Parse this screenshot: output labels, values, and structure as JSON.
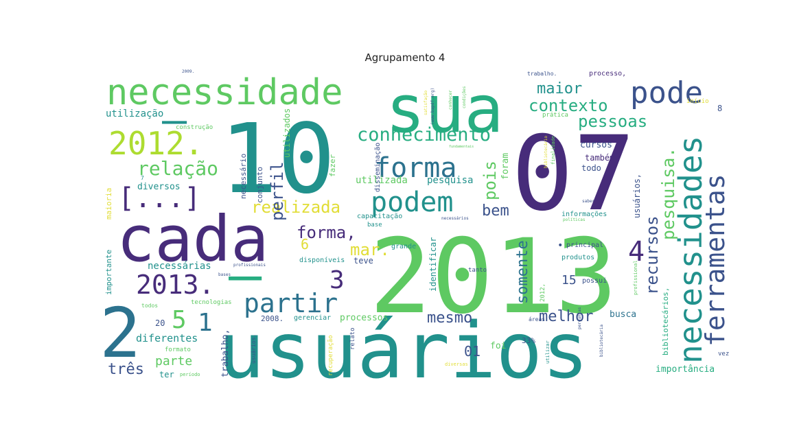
{
  "title": "Agrupamento 4",
  "palette": {
    "dark_purple": "#472c7a",
    "indigo": "#3b528b",
    "blue": "#2c728e",
    "teal": "#21918c",
    "green_teal": "#27ad81",
    "green": "#5ec962",
    "yellow_green": "#addc30",
    "yellow": "#e1dd37"
  },
  "words": [
    {
      "text": "2013",
      "color": "#5ec962"
    },
    {
      "text": "usuários",
      "color": "#21918c"
    },
    {
      "text": "10",
      "color": "#21918c"
    },
    {
      "text": "07",
      "color": "#472c7a"
    },
    {
      "text": "sua",
      "color": "#27ad81"
    },
    {
      "text": "cada",
      "color": "#472c7a"
    },
    {
      "text": "2",
      "color": "#2c728e"
    },
    {
      "text": "–",
      "color": "#21918c"
    },
    {
      "text": "–",
      "color": "#27ad81"
    },
    {
      "text": "necessidade",
      "color": "#5ec962"
    },
    {
      "text": "necessidades",
      "color": "#21918c"
    },
    {
      "text": "ferramentas",
      "color": "#3b528b"
    },
    {
      "text": "pode",
      "color": "#3b528b"
    },
    {
      "text": "2012.",
      "color": "#addc30"
    },
    {
      "text": "forma",
      "color": "#2c728e"
    },
    {
      "text": "podem",
      "color": "#21918c"
    },
    {
      "text": "partir",
      "color": "#2c728e"
    },
    {
      "text": "2013.",
      "color": "#472c7a"
    },
    {
      "text": "[...]",
      "color": "#472c7a"
    },
    {
      "text": "conhecimento",
      "color": "#27ad81"
    },
    {
      "text": "relação",
      "color": "#5ec962"
    },
    {
      "text": "realizada",
      "color": "#e1dd37"
    },
    {
      "text": "pesquisa.",
      "color": "#5ec962"
    },
    {
      "text": "recursos",
      "color": "#3b528b"
    },
    {
      "text": "contexto",
      "color": "#27ad81"
    },
    {
      "text": "pessoas",
      "color": "#27ad81"
    },
    {
      "text": "maior",
      "color": "#21918c"
    },
    {
      "text": "perfil",
      "color": "#3b528b"
    },
    {
      "text": "pois",
      "color": "#5ec962"
    },
    {
      "text": "bem",
      "color": "#3b528b"
    },
    {
      "text": "forma,",
      "color": "#472c7a"
    },
    {
      "text": "mar.",
      "color": "#e1dd37"
    },
    {
      "text": "6",
      "color": "#e1dd37"
    },
    {
      "text": "3",
      "color": "#472c7a"
    },
    {
      "text": "4",
      "color": "#472c7a"
    },
    {
      "text": "5",
      "color": "#5ec962"
    },
    {
      "text": "1",
      "color": "#2c728e"
    },
    {
      "text": "somente",
      "color": "#2c728e"
    },
    {
      "text": "mesmo",
      "color": "#3b528b"
    },
    {
      "text": "melhor",
      "color": "#3b528b"
    },
    {
      "text": "15",
      "color": "#3b528b"
    },
    {
      "text": "01",
      "color": "#3b528b"
    },
    {
      "text": "três",
      "color": "#3b528b"
    },
    {
      "text": "parte",
      "color": "#5ec962"
    },
    {
      "text": "diferentes",
      "color": "#21918c"
    },
    {
      "text": "necessárias",
      "color": "#21918c"
    },
    {
      "text": "diversos",
      "color": "#21918c"
    },
    {
      "text": "utilização",
      "color": "#21918c"
    },
    {
      "text": "cursos",
      "color": "#3b528b"
    },
    {
      "text": "também",
      "color": "#472c7a"
    },
    {
      "text": "todo",
      "color": "#3b528b"
    },
    {
      "text": "foram",
      "color": "#5ec962"
    },
    {
      "text": "processos",
      "color": "#5ec962"
    },
    {
      "text": "utilizada",
      "color": "#5ec962"
    },
    {
      "text": "pesquisa",
      "color": "#21918c"
    },
    {
      "text": "busca",
      "color": "#2c728e"
    },
    {
      "text": "importância",
      "color": "#27ad81"
    },
    {
      "text": "usuários,",
      "color": "#3b528b"
    },
    {
      "text": "bibliotecários,",
      "color": "#27ad81"
    },
    {
      "text": "necessário",
      "color": "#3b528b"
    },
    {
      "text": "conjunto",
      "color": "#3b528b"
    },
    {
      "text": "utilizados",
      "color": "#5ec962"
    },
    {
      "text": "trabalho,",
      "color": "#3b528b"
    },
    {
      "text": "fazer",
      "color": "#5ec962"
    },
    {
      "text": "teve",
      "color": "#3b528b"
    },
    {
      "text": "foi",
      "color": "#5ec962"
    },
    {
      "text": "ter",
      "color": "#21918c"
    },
    {
      "text": "2008.",
      "color": "#3b528b"
    },
    {
      "text": "gerenciar",
      "color": "#21918c"
    },
    {
      "text": "20",
      "color": "#3b528b"
    },
    {
      "text": "33%",
      "color": "#3b528b"
    },
    {
      "text": "possui",
      "color": "#3b528b"
    },
    {
      "text": "principal",
      "color": "#3b528b"
    },
    {
      "text": "produtos",
      "color": "#21918c"
    },
    {
      "text": "tanto",
      "color": "#3b528b"
    },
    {
      "text": "identificar",
      "color": "#21918c"
    },
    {
      "text": "grande",
      "color": "#21918c"
    },
    {
      "text": "disponíveis",
      "color": "#21918c"
    },
    {
      "text": "capacitação",
      "color": "#21918c"
    },
    {
      "text": "base",
      "color": "#21918c"
    },
    {
      "text": "informações",
      "color": "#21918c"
    },
    {
      "text": "maioria",
      "color": "#e1dd37"
    },
    {
      "text": "importante",
      "color": "#21918c"
    },
    {
      "text": "construção",
      "color": "#5ec962"
    },
    {
      "text": "disseminação",
      "color": "#3b528b"
    },
    {
      "text": "prática",
      "color": "#5ec962"
    },
    {
      "text": "início",
      "color": "#e1dd37"
    },
    {
      "text": "processo,",
      "color": "#472c7a"
    },
    {
      "text": "trabalho.",
      "color": "#3b528b"
    },
    {
      "text": "tecnologias",
      "color": "#5ec962"
    },
    {
      "text": "formato",
      "color": "#5ec962"
    },
    {
      "text": "relato",
      "color": "#3b528b"
    },
    {
      "text": "vez",
      "color": "#3b528b"
    },
    {
      "text": "áreas",
      "color": "#3b528b"
    },
    {
      "text": "todos",
      "color": "#5ec962"
    },
    {
      "text": "2009.",
      "color": "#3b528b"
    },
    {
      "text": "2012,",
      "color": "#5ec962"
    },
    {
      "text": "recuperação",
      "color": "#e1dd37"
    },
    {
      "text": "bases",
      "color": "#3b528b"
    },
    {
      "text": "profissionais",
      "color": "#3b528b"
    },
    {
      "text": "necessários",
      "color": "#3b528b"
    },
    {
      "text": "saber",
      "color": "#3b528b"
    },
    {
      "text": "período",
      "color": "#5ec962"
    },
    {
      "text": "utilizar",
      "color": "#21918c"
    },
    {
      "text": "finalidade",
      "color": "#5ec962"
    },
    {
      "text": "políticas",
      "color": "#5ec962"
    },
    {
      "text": "diversas",
      "color": "#e1dd37"
    },
    {
      "text": "usuários.",
      "color": "#3b528b"
    },
    {
      "text": "conhecer",
      "color": "#5ec962"
    },
    {
      "text": "profissional",
      "color": "#5ec962"
    },
    {
      "text": "perguntas",
      "color": "#3b528b"
    },
    {
      "text": "bibliotecária",
      "color": "#3b528b"
    },
    {
      "text": "satisfação",
      "color": "#e1dd37"
    },
    {
      "text": "condições",
      "color": "#5ec962"
    },
    {
      "text": "bibliotecário",
      "color": "#e1dd37"
    },
    {
      "text": "(www.bapdf.org)",
      "color": "#3b528b"
    },
    {
      "text": "fundamentais",
      "color": "#5ec962"
    },
    {
      "text": "7",
      "color": "#21918c"
    },
    {
      "text": "8",
      "color": "#3b528b"
    },
    {
      "text": "•",
      "color": "#3b528b"
    }
  ]
}
